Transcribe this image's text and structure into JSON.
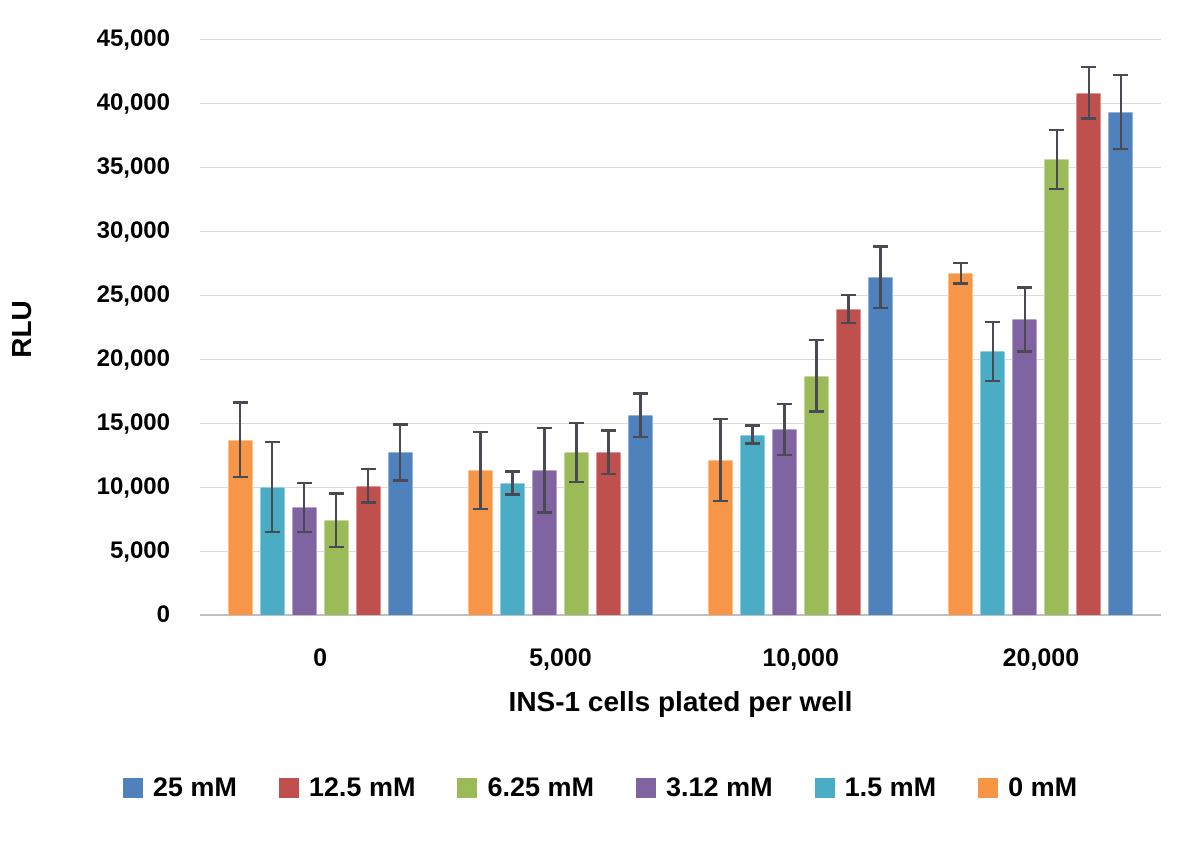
{
  "chart_data": {
    "type": "bar",
    "title": "",
    "xlabel": "INS-1 cells plated per well",
    "ylabel": "RLU",
    "ylim": [
      0,
      45000
    ],
    "ytick_step": 5000,
    "ytick_labels": [
      "0",
      "5,000",
      "10,000",
      "15,000",
      "20,000",
      "25,000",
      "30,000",
      "35,000",
      "40,000",
      "45,000"
    ],
    "categories": [
      "0",
      "5,000",
      "10,000",
      "20,000"
    ],
    "grid": true,
    "legend_position": "bottom",
    "bar_display_order": [
      "0 mM",
      "1.5 mM",
      "3.12 mM",
      "6.25 mM",
      "12.5 mM",
      "25 mM"
    ],
    "series": [
      {
        "name": "25 mM",
        "color": "#4F81BD",
        "values": [
          12700,
          15600,
          26400,
          39300
        ],
        "errors": [
          2200,
          1700,
          2400,
          2900
        ]
      },
      {
        "name": "12.5 mM",
        "color": "#C0504D",
        "values": [
          10100,
          12700,
          23900,
          40800
        ],
        "errors": [
          1300,
          1700,
          1100,
          2000
        ]
      },
      {
        "name": "6.25 mM",
        "color": "#9BBB59",
        "values": [
          7400,
          12700,
          18700,
          35600
        ],
        "errors": [
          2100,
          2300,
          2800,
          2300
        ]
      },
      {
        "name": "3.12 mM",
        "color": "#8064A2",
        "values": [
          8400,
          11300,
          14500,
          23100
        ],
        "errors": [
          1900,
          3300,
          2000,
          2500
        ]
      },
      {
        "name": "1.5 mM",
        "color": "#4BACC6",
        "values": [
          10000,
          10300,
          14100,
          20600
        ],
        "errors": [
          3500,
          900,
          700,
          2300
        ]
      },
      {
        "name": "0 mM",
        "color": "#F79646",
        "values": [
          13700,
          11300,
          12100,
          26700
        ],
        "errors": [
          2900,
          3000,
          3200,
          800
        ]
      }
    ],
    "colors": {
      "gridline": "#D9D9D9",
      "axis_line": "#BFBFBF",
      "error_bar": "#4A4A52",
      "text": "#000000",
      "background": "#FFFFFF"
    }
  }
}
